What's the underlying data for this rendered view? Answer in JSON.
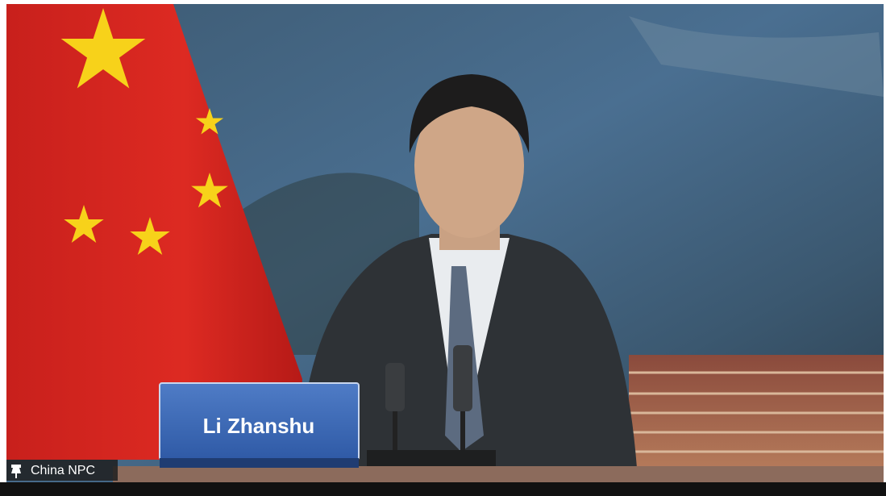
{
  "nameplate": "Li Zhanshu",
  "participant_label": "China NPC"
}
